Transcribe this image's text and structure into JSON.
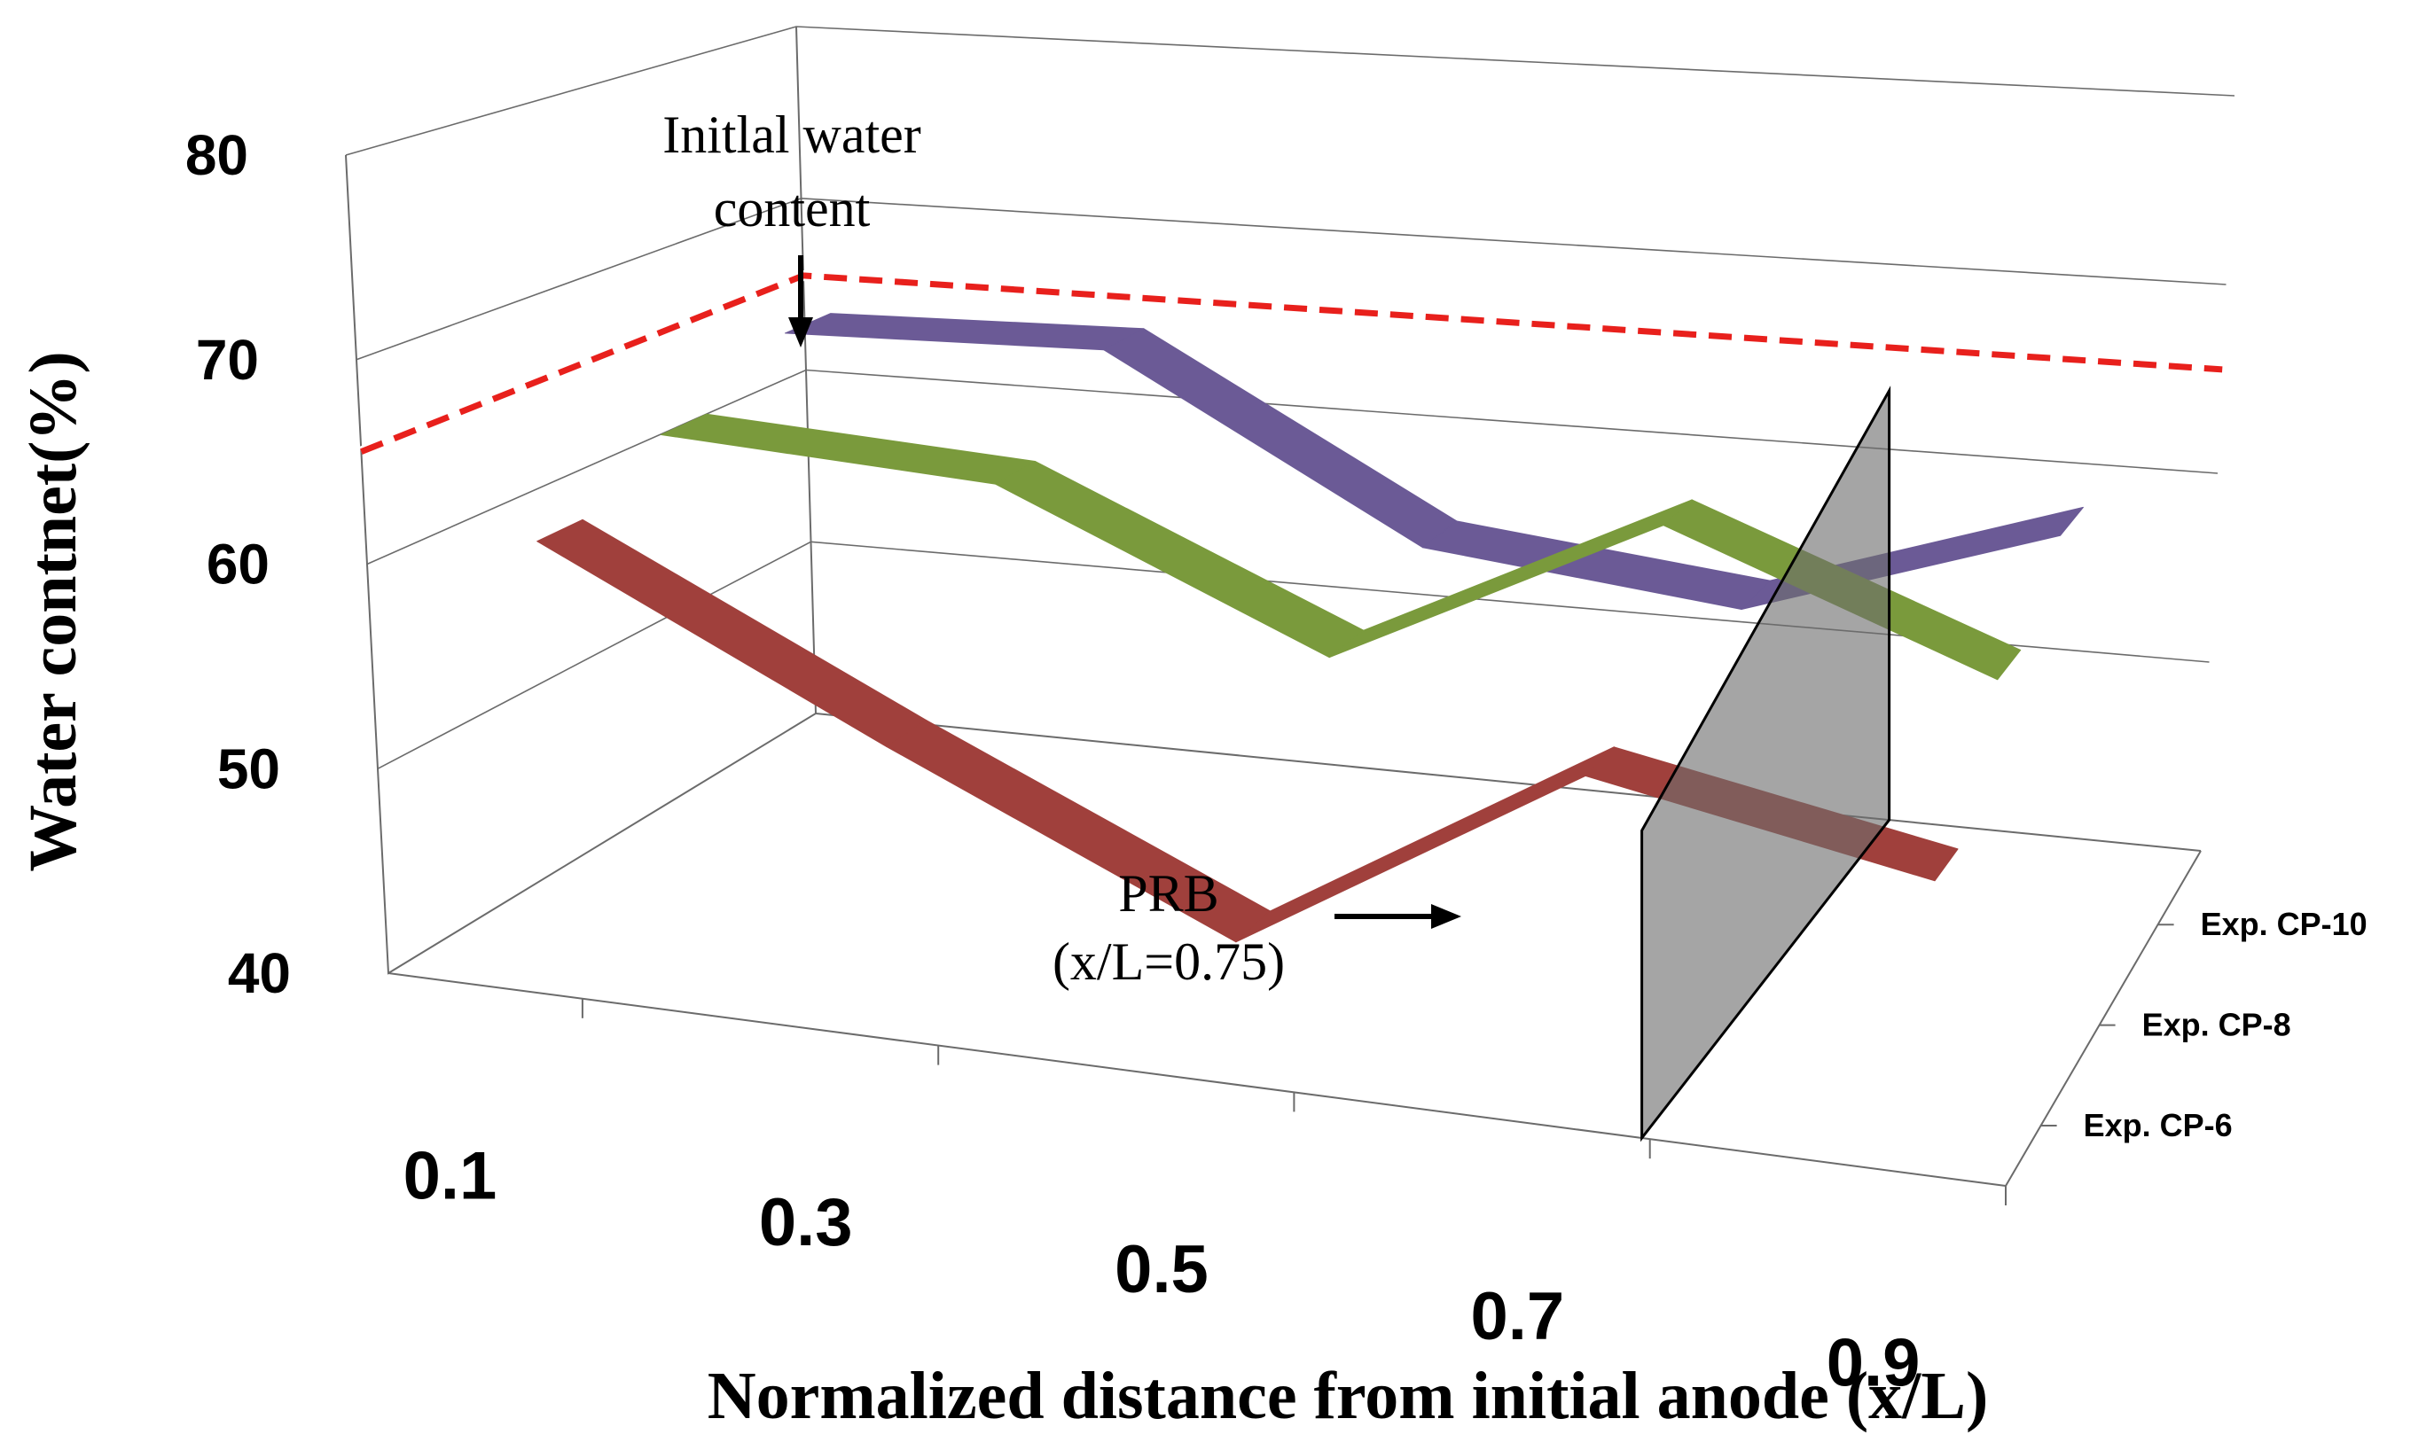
{
  "chart_data": {
    "type": "line",
    "style": "3d-ribbon",
    "title": "",
    "xlabel": "Normalized distance from initial anode (x/L)",
    "ylabel": "Water contnet(%)",
    "x": [
      0.1,
      0.3,
      0.5,
      0.7,
      0.9
    ],
    "xticks": [
      "0.1",
      "0.3",
      "0.5",
      "0.7",
      "0.9"
    ],
    "ylim": [
      40,
      80
    ],
    "yticks": [
      "40",
      "50",
      "60",
      "70",
      "80"
    ],
    "series": [
      {
        "name": "Exp. CP-6",
        "color": "#a0403c",
        "values": [
          60.5,
          52.5,
          45.0,
          55.5,
          52.5
        ]
      },
      {
        "name": "Exp. CP-8",
        "color": "#7a9a3c",
        "values": [
          63.0,
          62.5,
          55.5,
          64.5,
          58.5
        ]
      },
      {
        "name": "Exp. CP-10",
        "color": "#6b5a96",
        "values": [
          65.5,
          66.5,
          57.5,
          56.0,
          62.0
        ]
      }
    ],
    "reference_line": {
      "label_line1": "Initlal water",
      "label_line2": "content",
      "value": 65.5,
      "color": "#e8201c"
    },
    "barrier": {
      "label_line1": "PRB",
      "label_line2": "(x/L=0.75)",
      "x": 0.75,
      "ymin": 40,
      "ymax": 65
    },
    "grid": true,
    "legend": "depth-axis-right"
  }
}
